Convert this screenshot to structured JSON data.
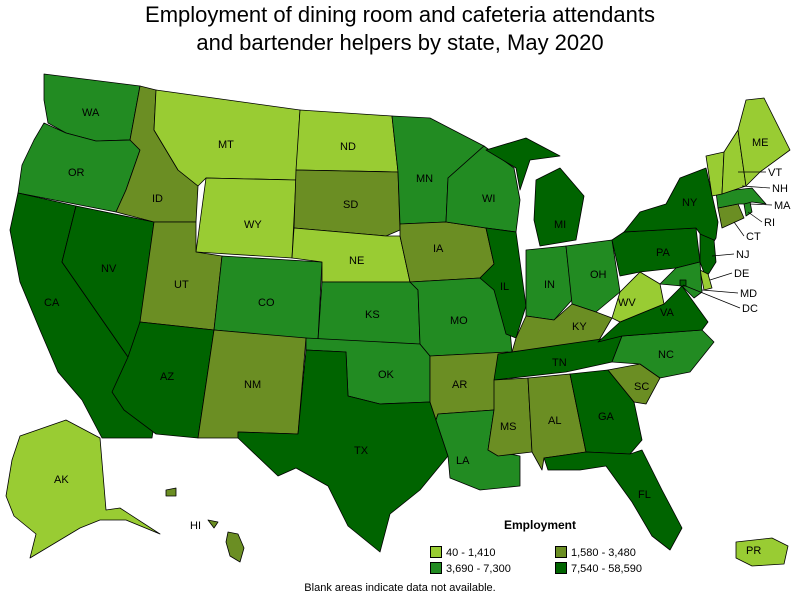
{
  "title_line1": "Employment of dining room and cafeteria attendants",
  "title_line2": "and bartender helpers by state, May 2020",
  "legend": {
    "title": "Employment",
    "items": [
      {
        "label": "40 - 1,410",
        "color": "#99cc33"
      },
      {
        "label": "1,580 - 3,480",
        "color": "#6b8e23"
      },
      {
        "label": "3,690 - 7,300",
        "color": "#228b22"
      },
      {
        "label": "7,540 - 58,590",
        "color": "#006400"
      }
    ]
  },
  "note": "Blank areas indicate data not available.",
  "colors": {
    "c1": "#99cc33",
    "c2": "#6b8e23",
    "c3": "#228b22",
    "c4": "#006400"
  },
  "states": {
    "WA": "c3",
    "OR": "c3",
    "CA": "c4",
    "NV": "c4",
    "ID": "c2",
    "MT": "c1",
    "WY": "c1",
    "UT": "c2",
    "AZ": "c4",
    "CO": "c3",
    "NM": "c2",
    "ND": "c1",
    "SD": "c2",
    "NE": "c1",
    "KS": "c3",
    "OK": "c3",
    "TX": "c4",
    "MN": "c3",
    "IA": "c2",
    "MO": "c3",
    "AR": "c2",
    "LA": "c3",
    "WI": "c3",
    "IL": "c4",
    "MI": "c4",
    "IN": "c3",
    "OH": "c3",
    "KY": "c2",
    "TN": "c4",
    "MS": "c2",
    "AL": "c2",
    "GA": "c4",
    "FL": "c4",
    "SC": "c2",
    "NC": "c3",
    "VA": "c4",
    "WV": "c1",
    "PA": "c4",
    "NY": "c4",
    "ME": "c1",
    "VT": "c1",
    "NH": "c1",
    "MA": "c3",
    "RI": "c3",
    "CT": "c2",
    "NJ": "c4",
    "DE": "c1",
    "MD": "c3",
    "DC": "c4",
    "AK": "c1",
    "HI": "c2",
    "PR": "c1"
  },
  "labels": {
    "WA": "WA",
    "OR": "OR",
    "CA": "CA",
    "NV": "NV",
    "ID": "ID",
    "MT": "MT",
    "WY": "WY",
    "UT": "UT",
    "AZ": "AZ",
    "CO": "CO",
    "NM": "NM",
    "ND": "ND",
    "SD": "SD",
    "NE": "NE",
    "KS": "KS",
    "OK": "OK",
    "TX": "TX",
    "MN": "MN",
    "IA": "IA",
    "MO": "MO",
    "AR": "AR",
    "LA": "LA",
    "WI": "WI",
    "IL": "IL",
    "MI": "MI",
    "IN": "IN",
    "OH": "OH",
    "KY": "KY",
    "TN": "TN",
    "MS": "MS",
    "AL": "AL",
    "GA": "GA",
    "FL": "FL",
    "SC": "SC",
    "NC": "NC",
    "VA": "VA",
    "WV": "WV",
    "PA": "PA",
    "NY": "NY",
    "ME": "ME",
    "VT": "VT",
    "NH": "NH",
    "MA": "MA",
    "RI": "RI",
    "CT": "CT",
    "NJ": "NJ",
    "DE": "DE",
    "MD": "MD",
    "DC": "DC",
    "AK": "AK",
    "HI": "HI",
    "PR": "PR"
  }
}
